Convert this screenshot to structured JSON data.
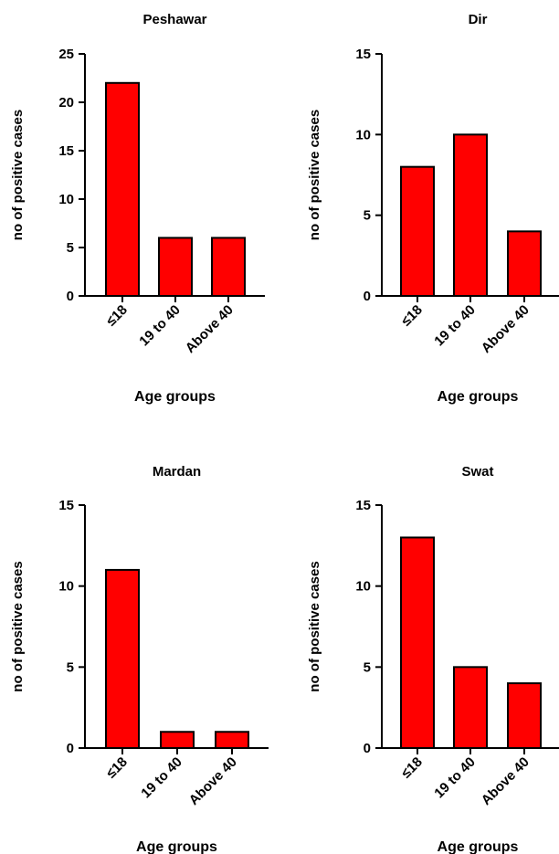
{
  "colors": {
    "bar": "#ff0000",
    "stroke": "#000000"
  },
  "chart_data": [
    {
      "type": "bar",
      "title": "Peshawar",
      "xlabel": "Age groups",
      "ylabel": "no of positive cases",
      "categories": [
        "≤18",
        "19 to 40",
        "Above 40"
      ],
      "values": [
        22,
        6,
        6
      ],
      "ylim": [
        0,
        25
      ],
      "yticks": [
        0,
        5,
        10,
        15,
        20,
        25
      ],
      "grid": false
    },
    {
      "type": "bar",
      "title": "Dir",
      "xlabel": "Age groups",
      "ylabel": "no of positive cases",
      "categories": [
        "≤18",
        "19 to 40",
        "Above 40"
      ],
      "values": [
        8,
        10,
        4
      ],
      "ylim": [
        0,
        15
      ],
      "yticks": [
        0,
        5,
        10,
        15
      ],
      "grid": false
    },
    {
      "type": "bar",
      "title": "Mardan",
      "xlabel": "Age groups",
      "ylabel": "no of positive cases",
      "categories": [
        "≤18",
        "19 to 40",
        "Above 40"
      ],
      "values": [
        11,
        1,
        1
      ],
      "ylim": [
        0,
        15
      ],
      "yticks": [
        0,
        5,
        10,
        15
      ],
      "grid": false
    },
    {
      "type": "bar",
      "title": "Swat",
      "xlabel": "Age groups",
      "ylabel": "no of positive cases",
      "categories": [
        "≤18",
        "19 to 40",
        "Above 40"
      ],
      "values": [
        13,
        5,
        4
      ],
      "ylim": [
        0,
        15
      ],
      "yticks": [
        0,
        5,
        10,
        15
      ],
      "grid": false
    }
  ]
}
